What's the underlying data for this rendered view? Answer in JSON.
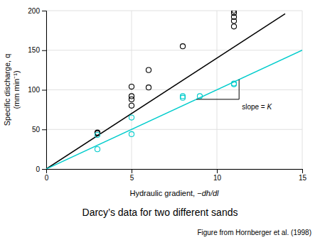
{
  "chart_data": {
    "type": "scatter",
    "title": "Darcy’s data for two different sands",
    "caption": "Figure from Hornberger et al. (1998)",
    "xlabel": [
      "Hydraulic gradient, −",
      "dh/dl"
    ],
    "ylabel": [
      "Specific discharge, q",
      "(mm min⁻¹)"
    ],
    "xlim": [
      0,
      15
    ],
    "ylim": [
      0,
      200
    ],
    "xticks": [
      0,
      5,
      10,
      15
    ],
    "yticks": [
      0,
      50,
      100,
      150,
      200
    ],
    "grid": true,
    "series": [
      {
        "type": "line",
        "color": "#000000",
        "x": [
          0,
          14.0
        ],
        "values": [
          0,
          196.0
        ]
      },
      {
        "type": "line",
        "color": "#00cccc",
        "x": [
          0,
          15
        ],
        "values": [
          0,
          150
        ]
      },
      {
        "type": "scatter",
        "marker": "circle",
        "color": "#000000",
        "x": [
          3,
          3,
          5,
          5,
          5,
          5,
          6,
          6,
          8,
          11,
          11,
          11,
          11,
          11
        ],
        "values": [
          45,
          46,
          80,
          88,
          92,
          104,
          103,
          125,
          155,
          180,
          187,
          192,
          197,
          200
        ]
      },
      {
        "type": "scatter",
        "marker": "circle",
        "color": "#00cccc",
        "x": [
          3,
          3,
          5,
          5,
          8,
          8,
          9,
          11,
          11
        ],
        "values": [
          25,
          43,
          44,
          65,
          90,
          92,
          92,
          107,
          108
        ]
      }
    ],
    "bracket": {
      "x": [
        8.8,
        11.3
      ],
      "y": [
        88,
        113
      ]
    },
    "annotation": [
      "slope = ",
      "K"
    ]
  }
}
